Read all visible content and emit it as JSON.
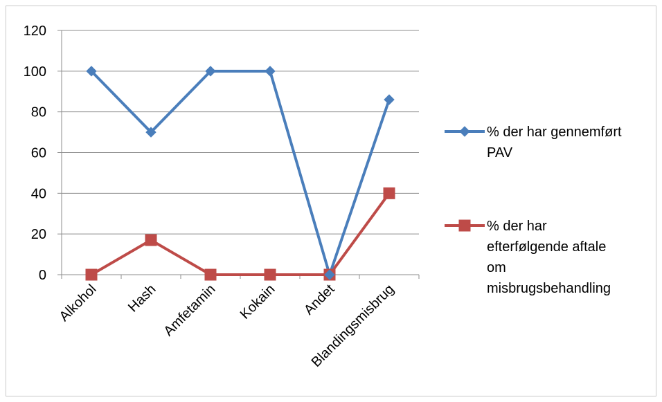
{
  "chart_data": {
    "type": "line",
    "categories": [
      "Alkohol",
      "Hash",
      "Amfetamin",
      "Kokain",
      "Andet",
      "Blandingsmisbrug"
    ],
    "series": [
      {
        "name": "% der har gennemført PAV",
        "name_lines": [
          "% der har gennemført",
          "PAV"
        ],
        "values": [
          100,
          70,
          100,
          100,
          0,
          86
        ],
        "color": "#4a7ebb",
        "marker": "diamond"
      },
      {
        "name": "% der har efterfølgende aftale om misbrugsbehandling",
        "name_lines": [
          "% der har",
          "efterfølgende aftale",
          "om",
          "misbrugsbehandling"
        ],
        "values": [
          0,
          17,
          0,
          0,
          0,
          40
        ],
        "color": "#be4b48",
        "marker": "square"
      }
    ],
    "title": "",
    "xlabel": "",
    "ylabel": "",
    "ylim": [
      0,
      120
    ],
    "yticks": [
      0,
      20,
      40,
      60,
      80,
      100,
      120
    ],
    "grid": true,
    "legend_position": "right"
  }
}
